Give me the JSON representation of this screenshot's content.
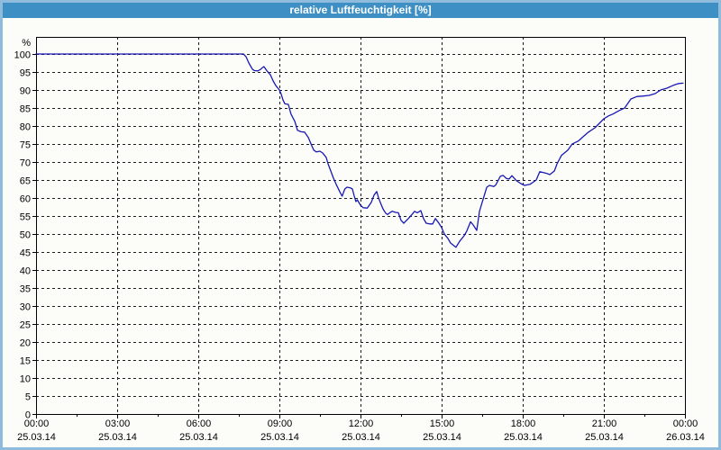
{
  "window": {
    "title": "relative Luftfeuchtigkeit [%]"
  },
  "colors": {
    "titlebar_bg": "#3d8fc4",
    "titlebar_text": "#ffffff",
    "frame_border": "#8fbcdc",
    "background": "#fcfdf9",
    "grid": "#1c1c1c",
    "axis": "#000000",
    "line": "#1818b4",
    "label_text": "#000000"
  },
  "chart_data": {
    "type": "line",
    "title": "relative Luftfeuchtigkeit [%]",
    "ylabel": "%",
    "xlabel": "",
    "grid": "dashed",
    "legend": "none",
    "ylim": [
      0,
      104.75
    ],
    "xlim": [
      0,
      24
    ],
    "y_ticks": [
      0,
      5,
      10,
      15,
      20,
      25,
      30,
      35,
      40,
      45,
      50,
      55,
      60,
      65,
      70,
      75,
      80,
      85,
      90,
      95,
      100
    ],
    "x_minor_tick_hours": 1.5,
    "x_ticks": [
      {
        "t": 0,
        "time": "00:00",
        "date": "25.03.14"
      },
      {
        "t": 3,
        "time": "03:00",
        "date": "25.03.14"
      },
      {
        "t": 6,
        "time": "06:00",
        "date": "25.03.14"
      },
      {
        "t": 9,
        "time": "09:00",
        "date": "25.03.14"
      },
      {
        "t": 12,
        "time": "12:00",
        "date": "25.03.14"
      },
      {
        "t": 15,
        "time": "15:00",
        "date": "25.03.14"
      },
      {
        "t": 18,
        "time": "18:00",
        "date": "25.03.14"
      },
      {
        "t": 21,
        "time": "21:00",
        "date": "25.03.14"
      },
      {
        "t": 24,
        "time": "00:00",
        "date": "26.03.14"
      }
    ],
    "series": [
      {
        "name": "relative Luftfeuchtigkeit [%]",
        "x_unit": "hours",
        "y_unit": "%",
        "points": [
          [
            0,
            100
          ],
          [
            7.67,
            100
          ],
          [
            7.77,
            99.2
          ],
          [
            7.87,
            97.5
          ],
          [
            8.0,
            95.8
          ],
          [
            8.07,
            95.4
          ],
          [
            8.2,
            95.3
          ],
          [
            8.3,
            95.7
          ],
          [
            8.37,
            96.2
          ],
          [
            8.43,
            96.5
          ],
          [
            8.53,
            95.4
          ],
          [
            8.67,
            94.2
          ],
          [
            8.77,
            92.5
          ],
          [
            8.87,
            91.2
          ],
          [
            9.0,
            90
          ],
          [
            9.07,
            88.8
          ],
          [
            9.13,
            87.3
          ],
          [
            9.2,
            86.2
          ],
          [
            9.33,
            86
          ],
          [
            9.43,
            83.3
          ],
          [
            9.57,
            81.3
          ],
          [
            9.67,
            78.8
          ],
          [
            9.8,
            78.4
          ],
          [
            9.93,
            78.3
          ],
          [
            10.07,
            76.8
          ],
          [
            10.17,
            75
          ],
          [
            10.27,
            73.3
          ],
          [
            10.37,
            72.8
          ],
          [
            10.5,
            73
          ],
          [
            10.6,
            72.5
          ],
          [
            10.73,
            71.3
          ],
          [
            10.8,
            69.5
          ],
          [
            10.9,
            67.5
          ],
          [
            11.0,
            65.5
          ],
          [
            11.1,
            63.8
          ],
          [
            11.23,
            61.8
          ],
          [
            11.32,
            60.5
          ],
          [
            11.42,
            62.5
          ],
          [
            11.5,
            63
          ],
          [
            11.63,
            62.8
          ],
          [
            11.7,
            62.5
          ],
          [
            11.77,
            60.5
          ],
          [
            11.83,
            59
          ],
          [
            11.88,
            59.5
          ],
          [
            12.0,
            58
          ],
          [
            12.1,
            57.3
          ],
          [
            12.25,
            57.2
          ],
          [
            12.4,
            58.8
          ],
          [
            12.5,
            60.8
          ],
          [
            12.6,
            61.8
          ],
          [
            12.67,
            60
          ],
          [
            12.73,
            58.8
          ],
          [
            12.83,
            57
          ],
          [
            12.93,
            55.8
          ],
          [
            13.0,
            55.4
          ],
          [
            13.1,
            56
          ],
          [
            13.17,
            56.3
          ],
          [
            13.3,
            56
          ],
          [
            13.4,
            55.9
          ],
          [
            13.5,
            53.8
          ],
          [
            13.6,
            53
          ],
          [
            13.77,
            54.3
          ],
          [
            13.9,
            55.4
          ],
          [
            14.0,
            56.3
          ],
          [
            14.1,
            55.9
          ],
          [
            14.23,
            56.5
          ],
          [
            14.33,
            54.3
          ],
          [
            14.43,
            53
          ],
          [
            14.55,
            52.8
          ],
          [
            14.67,
            52.8
          ],
          [
            14.77,
            54.3
          ],
          [
            14.9,
            53
          ],
          [
            15.0,
            51.8
          ],
          [
            15.1,
            50
          ],
          [
            15.23,
            48.8
          ],
          [
            15.33,
            47.5
          ],
          [
            15.53,
            46.3
          ],
          [
            15.67,
            48
          ],
          [
            15.83,
            49.5
          ],
          [
            15.93,
            50.8
          ],
          [
            16.07,
            53.4
          ],
          [
            16.17,
            52.5
          ],
          [
            16.3,
            51
          ],
          [
            16.4,
            56.3
          ],
          [
            16.5,
            58.8
          ],
          [
            16.57,
            60.5
          ],
          [
            16.67,
            63
          ],
          [
            16.77,
            63.5
          ],
          [
            16.93,
            63.2
          ],
          [
            17.0,
            63.6
          ],
          [
            17.1,
            65
          ],
          [
            17.17,
            66
          ],
          [
            17.27,
            66.3
          ],
          [
            17.4,
            65.4
          ],
          [
            17.5,
            65.3
          ],
          [
            17.6,
            66.2
          ],
          [
            17.77,
            64.8
          ],
          [
            17.93,
            64
          ],
          [
            18.07,
            63.5
          ],
          [
            18.27,
            63.8
          ],
          [
            18.5,
            65
          ],
          [
            18.63,
            67.3
          ],
          [
            18.9,
            66.8
          ],
          [
            19.0,
            66.5
          ],
          [
            19.17,
            67.5
          ],
          [
            19.27,
            69.5
          ],
          [
            19.43,
            71.8
          ],
          [
            19.67,
            73.3
          ],
          [
            19.83,
            75
          ],
          [
            20.07,
            75.9
          ],
          [
            20.23,
            77
          ],
          [
            20.43,
            78.3
          ],
          [
            20.67,
            79.5
          ],
          [
            21.0,
            82
          ],
          [
            21.17,
            82.8
          ],
          [
            21.33,
            83.3
          ],
          [
            21.57,
            84.3
          ],
          [
            21.77,
            85
          ],
          [
            22.0,
            87.5
          ],
          [
            22.23,
            88.2
          ],
          [
            22.43,
            88.3
          ],
          [
            22.67,
            88.5
          ],
          [
            22.9,
            89
          ],
          [
            23.1,
            90
          ],
          [
            23.33,
            90.5
          ],
          [
            23.57,
            91.3
          ],
          [
            23.77,
            91.8
          ],
          [
            23.93,
            91.9
          ]
        ]
      }
    ]
  }
}
